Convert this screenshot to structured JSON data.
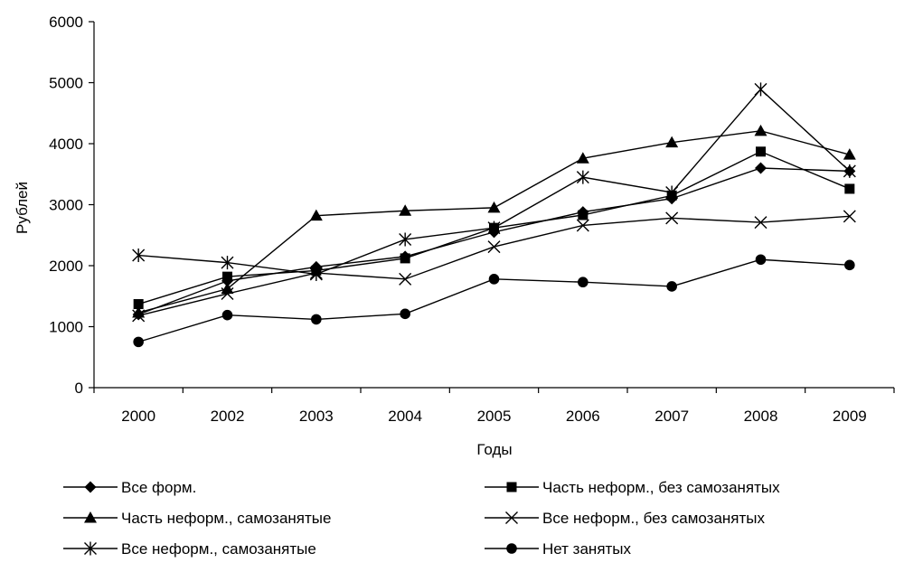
{
  "chart_data": {
    "type": "line",
    "title": "",
    "xlabel": "Годы",
    "ylabel": "Рублей",
    "ylim": [
      0,
      6000
    ],
    "yticks": [
      0,
      1000,
      2000,
      3000,
      4000,
      5000,
      6000
    ],
    "grid": false,
    "legend_position": "bottom",
    "categories": [
      "2000",
      "2002",
      "2003",
      "2004",
      "2005",
      "2006",
      "2007",
      "2008",
      "2009"
    ],
    "series": [
      {
        "name": "Все форм.",
        "marker": "diamond",
        "values": [
          1200,
          1750,
          1980,
          2150,
          2550,
          2880,
          3100,
          3600,
          3550
        ]
      },
      {
        "name": "Часть неформ., без самозанятых",
        "marker": "square",
        "values": [
          1370,
          1820,
          1920,
          2120,
          2620,
          2830,
          3150,
          3870,
          3260
        ]
      },
      {
        "name": "Часть неформ., самозанятые",
        "marker": "triangle",
        "values": [
          1230,
          1620,
          2820,
          2900,
          2950,
          3760,
          4020,
          4210,
          3820
        ]
      },
      {
        "name": "Все неформ., без самозанятых",
        "marker": "x",
        "values": [
          1180,
          1540,
          1880,
          1780,
          2310,
          2660,
          2780,
          2710,
          2810
        ]
      },
      {
        "name": "Все неформ., самозанятые",
        "marker": "asterisk",
        "values": [
          2170,
          2050,
          1860,
          2430,
          2620,
          3450,
          3200,
          4890,
          3550
        ]
      },
      {
        "name": "Нет занятых",
        "marker": "circle",
        "values": [
          750,
          1190,
          1120,
          1210,
          1780,
          1730,
          1660,
          2100,
          2010
        ]
      }
    ]
  }
}
